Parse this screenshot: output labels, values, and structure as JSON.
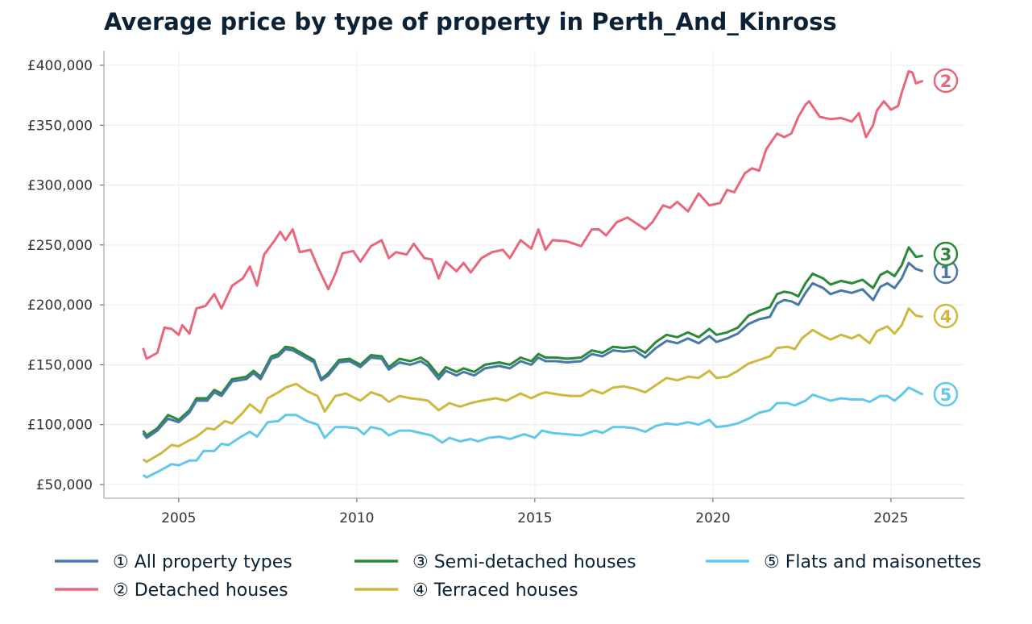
{
  "chart_data": {
    "type": "line",
    "title": "Average price by type of property in Perth_And_Kinross",
    "xlabel": "",
    "ylabel": "",
    "xlim": [
      2002.9,
      2027.06
    ],
    "ylim": [
      38560,
      412100
    ],
    "x_ticks": [
      2005,
      2010,
      2015,
      2020,
      2025
    ],
    "x_tick_labels": [
      "2005",
      "2010",
      "2015",
      "2020",
      "2025"
    ],
    "y_ticks": [
      50000,
      100000,
      150000,
      200000,
      250000,
      300000,
      350000,
      400000
    ],
    "y_tick_labels": [
      "£50,000",
      "£100,000",
      "£150,000",
      "£200,000",
      "£250,000",
      "£300,000",
      "£350,000",
      "£400,000"
    ],
    "grid": true,
    "legend_position": "bottom",
    "series": [
      {
        "name": "All property types",
        "legend_label": "① All property types",
        "marker": "1",
        "color": "#4878a8",
        "x": [
          2004.0,
          2004.1,
          2004.4,
          2004.7,
          2005.0,
          2005.3,
          2005.5,
          2005.8,
          2006.0,
          2006.2,
          2006.5,
          2006.9,
          2007.1,
          2007.3,
          2007.6,
          2007.8,
          2008.0,
          2008.2,
          2008.5,
          2008.8,
          2009.0,
          2009.2,
          2009.5,
          2009.8,
          2010.1,
          2010.4,
          2010.7,
          2010.9,
          2011.2,
          2011.5,
          2011.8,
          2012.0,
          2012.3,
          2012.5,
          2012.8,
          2013.0,
          2013.3,
          2013.6,
          2014.0,
          2014.3,
          2014.6,
          2014.9,
          2015.1,
          2015.3,
          2015.6,
          2015.9,
          2016.3,
          2016.6,
          2016.9,
          2017.2,
          2017.5,
          2017.8,
          2018.1,
          2018.4,
          2018.7,
          2019.0,
          2019.3,
          2019.6,
          2019.9,
          2020.1,
          2020.4,
          2020.7,
          2021.0,
          2021.3,
          2021.6,
          2021.8,
          2022.0,
          2022.2,
          2022.4,
          2022.6,
          2022.8,
          2023.1,
          2023.3,
          2023.6,
          2023.9,
          2024.2,
          2024.5,
          2024.7,
          2024.9,
          2025.1,
          2025.3,
          2025.5,
          2025.7,
          2025.9
        ],
        "y": [
          93000,
          89000,
          95000,
          105000,
          102000,
          110000,
          120000,
          120000,
          127000,
          124000,
          136000,
          138000,
          143000,
          138000,
          155000,
          157000,
          163000,
          162000,
          157000,
          152000,
          137000,
          141000,
          152000,
          153000,
          148000,
          156000,
          155000,
          146000,
          152000,
          150000,
          153000,
          149000,
          138000,
          145000,
          141000,
          144000,
          141000,
          147000,
          149000,
          147000,
          153000,
          150000,
          156000,
          153000,
          153000,
          152000,
          153000,
          159000,
          157000,
          162000,
          161000,
          162000,
          156000,
          164000,
          170000,
          168000,
          172000,
          168000,
          174000,
          169000,
          172000,
          176000,
          184000,
          188000,
          190000,
          201000,
          204000,
          203000,
          200000,
          210000,
          218000,
          214000,
          209000,
          212000,
          210000,
          213000,
          204000,
          215000,
          218000,
          214000,
          222000,
          235000,
          230000,
          228000
        ]
      },
      {
        "name": "Detached houses",
        "legend_label": "② Detached houses",
        "marker": "2",
        "color": "#e8677a",
        "x": [
          2004.0,
          2004.1,
          2004.4,
          2004.6,
          2004.8,
          2005.0,
          2005.1,
          2005.3,
          2005.5,
          2005.75,
          2006.0,
          2006.2,
          2006.5,
          2006.8,
          2007.0,
          2007.2,
          2007.4,
          2007.7,
          2007.85,
          2008.0,
          2008.2,
          2008.4,
          2008.7,
          2008.9,
          2009.2,
          2009.4,
          2009.6,
          2009.9,
          2010.1,
          2010.4,
          2010.7,
          2010.9,
          2011.1,
          2011.4,
          2011.6,
          2011.9,
          2012.1,
          2012.3,
          2012.5,
          2012.8,
          2013.0,
          2013.2,
          2013.5,
          2013.8,
          2014.1,
          2014.3,
          2014.6,
          2014.9,
          2015.1,
          2015.3,
          2015.5,
          2015.9,
          2016.3,
          2016.6,
          2016.8,
          2017.0,
          2017.3,
          2017.6,
          2017.8,
          2018.1,
          2018.3,
          2018.6,
          2018.8,
          2019.0,
          2019.3,
          2019.6,
          2019.9,
          2020.2,
          2020.4,
          2020.6,
          2020.9,
          2021.1,
          2021.3,
          2021.5,
          2021.8,
          2022.0,
          2022.2,
          2022.4,
          2022.6,
          2022.7,
          2023.0,
          2023.3,
          2023.6,
          2023.9,
          2024.1,
          2024.3,
          2024.5,
          2024.6,
          2024.8,
          2025.0,
          2025.2,
          2025.3,
          2025.5,
          2025.6,
          2025.7,
          2025.9
        ],
        "y": [
          164000,
          155000,
          160000,
          181000,
          180000,
          175000,
          183000,
          176000,
          197000,
          199000,
          209000,
          197000,
          216000,
          222000,
          232000,
          216000,
          242000,
          254000,
          261000,
          254000,
          263000,
          244000,
          246000,
          232000,
          213000,
          226000,
          243000,
          245000,
          236000,
          249000,
          254000,
          239000,
          244000,
          242000,
          251000,
          239000,
          238000,
          222000,
          236000,
          228000,
          235000,
          227000,
          239000,
          244000,
          246000,
          239000,
          254000,
          247000,
          263000,
          246000,
          254000,
          253000,
          249000,
          263000,
          263000,
          258000,
          269000,
          273000,
          269000,
          263000,
          269000,
          283000,
          281000,
          286000,
          278000,
          293000,
          283000,
          285000,
          296000,
          294000,
          310000,
          314000,
          312000,
          330000,
          343000,
          340000,
          343000,
          357000,
          367000,
          370000,
          357000,
          355000,
          356000,
          353000,
          360000,
          340000,
          350000,
          362000,
          370000,
          363000,
          366000,
          377000,
          395000,
          394000,
          385000,
          387000
        ]
      },
      {
        "name": "Semi-detached houses",
        "legend_label": "③ Semi-detached houses",
        "marker": "3",
        "color": "#2a8a3a",
        "x": [
          2004.0,
          2004.1,
          2004.4,
          2004.7,
          2005.0,
          2005.3,
          2005.5,
          2005.8,
          2006.0,
          2006.2,
          2006.5,
          2006.9,
          2007.1,
          2007.3,
          2007.6,
          2007.8,
          2008.0,
          2008.2,
          2008.5,
          2008.8,
          2009.0,
          2009.2,
          2009.5,
          2009.8,
          2010.1,
          2010.4,
          2010.7,
          2010.9,
          2011.2,
          2011.5,
          2011.8,
          2012.0,
          2012.3,
          2012.5,
          2012.8,
          2013.0,
          2013.3,
          2013.6,
          2014.0,
          2014.3,
          2014.6,
          2014.9,
          2015.1,
          2015.3,
          2015.6,
          2015.9,
          2016.3,
          2016.6,
          2016.9,
          2017.2,
          2017.5,
          2017.8,
          2018.1,
          2018.4,
          2018.7,
          2019.0,
          2019.3,
          2019.6,
          2019.9,
          2020.1,
          2020.4,
          2020.7,
          2021.0,
          2021.3,
          2021.6,
          2021.8,
          2022.0,
          2022.2,
          2022.4,
          2022.6,
          2022.8,
          2023.1,
          2023.3,
          2023.6,
          2023.9,
          2024.2,
          2024.5,
          2024.7,
          2024.9,
          2025.1,
          2025.3,
          2025.5,
          2025.7,
          2025.9
        ],
        "y": [
          95000,
          91000,
          97000,
          108000,
          104000,
          112000,
          122000,
          122000,
          129000,
          126000,
          138000,
          140000,
          145000,
          140000,
          157000,
          159000,
          165000,
          164000,
          159000,
          154000,
          138000,
          143000,
          154000,
          155000,
          150000,
          158000,
          157000,
          148000,
          155000,
          153000,
          156000,
          152000,
          141000,
          148000,
          144000,
          147000,
          144000,
          150000,
          152000,
          150000,
          156000,
          153000,
          159000,
          156000,
          156000,
          155000,
          156000,
          162000,
          160000,
          165000,
          164000,
          165000,
          160000,
          169000,
          175000,
          173000,
          177000,
          173000,
          180000,
          175000,
          177000,
          181000,
          191000,
          195000,
          198000,
          209000,
          211000,
          210000,
          207000,
          218000,
          226000,
          222000,
          217000,
          220000,
          218000,
          221000,
          214000,
          225000,
          228000,
          224000,
          233000,
          248000,
          240000,
          241000
        ]
      },
      {
        "name": "Terraced houses",
        "legend_label": "④ Terraced houses",
        "marker": "4",
        "color": "#cdb840",
        "x": [
          2004.0,
          2004.1,
          2004.5,
          2004.8,
          2005.0,
          2005.3,
          2005.5,
          2005.8,
          2006.0,
          2006.3,
          2006.5,
          2006.8,
          2007.0,
          2007.3,
          2007.5,
          2007.8,
          2008.0,
          2008.3,
          2008.6,
          2008.9,
          2009.1,
          2009.4,
          2009.7,
          2010.1,
          2010.4,
          2010.7,
          2010.9,
          2011.2,
          2011.5,
          2011.8,
          2012.0,
          2012.3,
          2012.6,
          2012.9,
          2013.2,
          2013.5,
          2013.9,
          2014.2,
          2014.6,
          2014.9,
          2015.1,
          2015.3,
          2015.7,
          2016.0,
          2016.3,
          2016.6,
          2016.9,
          2017.2,
          2017.5,
          2017.8,
          2018.1,
          2018.4,
          2018.7,
          2019.0,
          2019.3,
          2019.6,
          2019.9,
          2020.1,
          2020.4,
          2020.7,
          2021.0,
          2021.3,
          2021.6,
          2021.8,
          2022.1,
          2022.3,
          2022.5,
          2022.8,
          2023.1,
          2023.3,
          2023.6,
          2023.9,
          2024.1,
          2024.4,
          2024.6,
          2024.9,
          2025.1,
          2025.3,
          2025.5,
          2025.7,
          2025.9
        ],
        "y": [
          71000,
          69000,
          76000,
          83000,
          82000,
          87000,
          90000,
          97000,
          96000,
          103000,
          101000,
          110000,
          117000,
          110000,
          122000,
          127000,
          131000,
          134000,
          128000,
          124000,
          111000,
          124000,
          126000,
          120000,
          127000,
          124000,
          119000,
          124000,
          122000,
          121000,
          120000,
          112000,
          118000,
          115000,
          118000,
          120000,
          122000,
          120000,
          126000,
          122000,
          125000,
          127000,
          125000,
          124000,
          124000,
          129000,
          126000,
          131000,
          132000,
          130000,
          127000,
          133000,
          139000,
          137000,
          140000,
          139000,
          145000,
          139000,
          140000,
          145000,
          151000,
          154000,
          157000,
          164000,
          165000,
          163000,
          172000,
          179000,
          174000,
          171000,
          175000,
          172000,
          175000,
          168000,
          178000,
          182000,
          176000,
          183000,
          197000,
          191000,
          190000
        ]
      },
      {
        "name": "Flats and maisonettes",
        "legend_label": "⑤ Flats and maisonettes",
        "marker": "5",
        "color": "#62c8ea",
        "x": [
          2004.0,
          2004.1,
          2004.5,
          2004.8,
          2005.0,
          2005.3,
          2005.5,
          2005.7,
          2006.0,
          2006.2,
          2006.4,
          2006.7,
          2007.0,
          2007.2,
          2007.5,
          2007.8,
          2008.0,
          2008.3,
          2008.6,
          2008.9,
          2009.1,
          2009.4,
          2009.7,
          2010.0,
          2010.2,
          2010.4,
          2010.7,
          2010.9,
          2011.2,
          2011.5,
          2011.8,
          2012.1,
          2012.4,
          2012.6,
          2012.9,
          2013.2,
          2013.4,
          2013.7,
          2014.0,
          2014.3,
          2014.7,
          2015.0,
          2015.2,
          2015.5,
          2015.9,
          2016.3,
          2016.7,
          2016.9,
          2017.2,
          2017.5,
          2017.8,
          2018.1,
          2018.4,
          2018.7,
          2019.0,
          2019.3,
          2019.6,
          2019.9,
          2020.1,
          2020.4,
          2020.7,
          2021.0,
          2021.3,
          2021.6,
          2021.8,
          2022.1,
          2022.3,
          2022.6,
          2022.8,
          2023.1,
          2023.3,
          2023.6,
          2023.9,
          2024.2,
          2024.4,
          2024.7,
          2024.9,
          2025.1,
          2025.3,
          2025.5,
          2025.7,
          2025.9
        ],
        "y": [
          58000,
          56000,
          62000,
          67000,
          66000,
          70000,
          70000,
          78000,
          78000,
          84000,
          83000,
          89000,
          94000,
          90000,
          102000,
          103000,
          108000,
          108000,
          103000,
          100000,
          89000,
          98000,
          98000,
          97000,
          92000,
          98000,
          96000,
          91000,
          95000,
          95000,
          93000,
          91000,
          85000,
          89000,
          86000,
          88000,
          86000,
          89000,
          90000,
          88000,
          92000,
          89000,
          95000,
          93000,
          92000,
          91000,
          95000,
          93000,
          98000,
          98000,
          97000,
          94000,
          99000,
          101000,
          100000,
          102000,
          100000,
          104000,
          98000,
          99000,
          101000,
          105000,
          110000,
          112000,
          118000,
          118000,
          116000,
          120000,
          125000,
          122000,
          120000,
          122000,
          121000,
          121000,
          119000,
          124000,
          124000,
          120000,
          125000,
          131000,
          128000,
          125000
        ]
      }
    ]
  }
}
